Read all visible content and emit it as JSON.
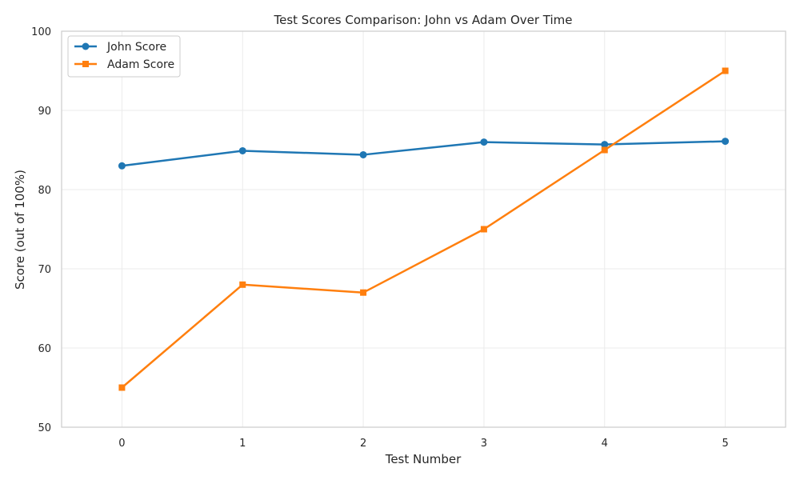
{
  "chart_data": {
    "type": "line",
    "title": "Test Scores Comparison: John vs Adam Over Time",
    "xlabel": "Test Number",
    "ylabel": "Score (out of 100%)",
    "x": [
      0,
      1,
      2,
      3,
      4,
      5
    ],
    "xlim": [
      -0.5,
      5.5
    ],
    "ylim": [
      50,
      100
    ],
    "xticks": [
      0,
      1,
      2,
      3,
      4,
      5
    ],
    "yticks": [
      50,
      60,
      70,
      80,
      90,
      100
    ],
    "grid": true,
    "legend_position": "top-left",
    "series": [
      {
        "name": "John Score",
        "values": [
          83.0,
          84.9,
          84.4,
          86.0,
          85.7,
          86.1
        ],
        "color": "#1f77b4",
        "marker": "circle"
      },
      {
        "name": "Adam Score",
        "values": [
          55,
          68,
          67,
          75,
          85,
          95
        ],
        "color": "#ff7f0e",
        "marker": "square"
      }
    ]
  }
}
